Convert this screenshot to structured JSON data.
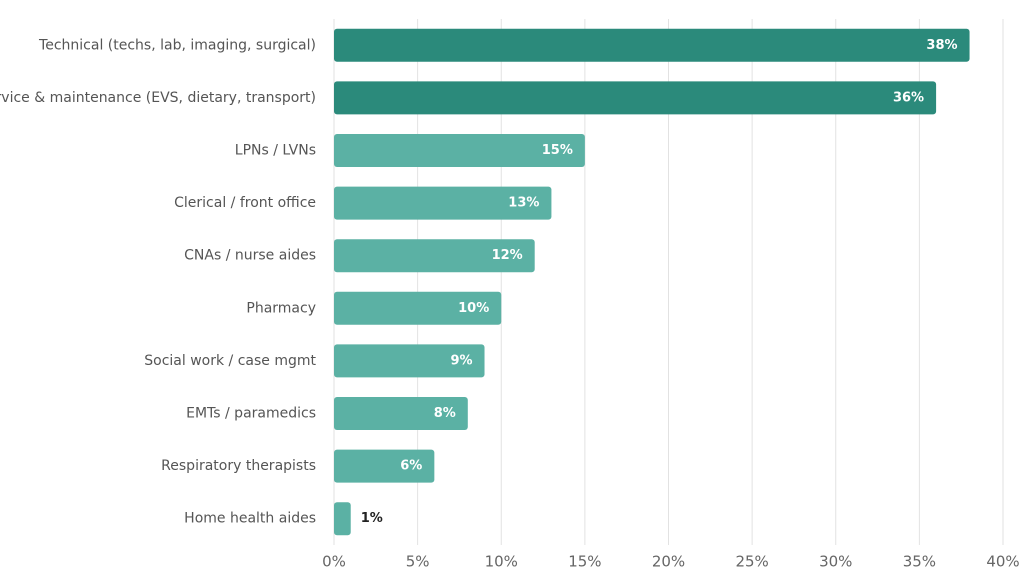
{
  "chart_data": {
    "type": "hbar",
    "categories": [
      "Technical (techs, lab, imaging, surgical)",
      "Service & maintenance (EVS, dietary, transport)",
      "LPNs / LVNs",
      "Clerical / front office",
      "CNAs / nurse aides",
      "Pharmacy",
      "Social work / case mgmt",
      "EMTs / paramedics",
      "Respiratory therapists",
      "Home health aides"
    ],
    "values": [
      38,
      36,
      15,
      13,
      12,
      10,
      9,
      8,
      6,
      1
    ],
    "value_labels": [
      "38%",
      "36%",
      "15%",
      "13%",
      "12%",
      "10%",
      "9%",
      "8%",
      "6%",
      "1%"
    ],
    "colors": [
      "#2b8a7b",
      "#2b8a7b",
      "#5bb1a4",
      "#5bb1a4",
      "#5bb1a4",
      "#5bb1a4",
      "#5bb1a4",
      "#5bb1a4",
      "#5bb1a4",
      "#5bb1a4"
    ],
    "xlim": [
      0,
      40
    ],
    "xticks": [
      {
        "value": 0,
        "label": "0%"
      },
      {
        "value": 5,
        "label": "5%"
      },
      {
        "value": 10,
        "label": "10%"
      },
      {
        "value": 15,
        "label": "15%"
      },
      {
        "value": 20,
        "label": "20%"
      },
      {
        "value": 25,
        "label": "25%"
      },
      {
        "value": 30,
        "label": "30%"
      },
      {
        "value": 35,
        "label": "35%"
      },
      {
        "value": 40,
        "label": "40%"
      }
    ],
    "grid": true
  }
}
